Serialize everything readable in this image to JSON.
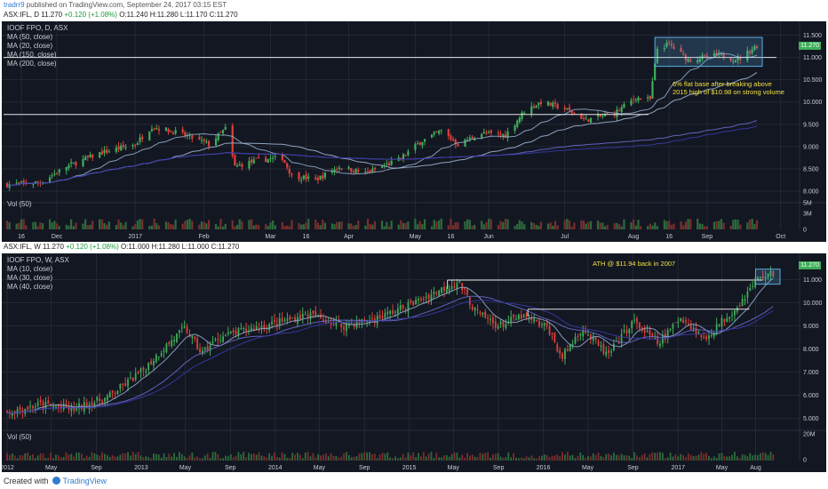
{
  "header": {
    "author": "tradrr9",
    "published": "published on TradingView.com, September 24, 2017 03:15 EST"
  },
  "daily": {
    "infobar": {
      "symbol": "ASX:IFL, D",
      "last": "11.270",
      "change": "+0.120 (+1.08%)",
      "open": "O:11.240",
      "high": "H:11.280",
      "low": "L:11.170",
      "close": "C:11.270"
    },
    "legend": [
      "IOOF FPO, D, ASX",
      "MA (50, close)",
      "MA (20, close)",
      "MA (150, close)",
      "MA (200, close)"
    ],
    "price_tag": "11.270",
    "annotation": [
      "6% flat base after breaking above",
      "2015 high of $10.98 on strong volume"
    ],
    "vol_label": "Vol (50)"
  },
  "weekly": {
    "infobar": {
      "symbol": "ASX:IFL, W",
      "last": "11.270",
      "change": "+0.120 (+1.08%)",
      "open": "O:11.000",
      "high": "H:11.280",
      "low": "L:11.000",
      "close": "C:11.270"
    },
    "legend": [
      "IOOF FPO, W, ASX",
      "MA (10, close)",
      "MA (30, close)",
      "MA (40, close)"
    ],
    "price_tag": "11.270",
    "annotation": "ATH @ $11.94 back in 2007",
    "vol_label": "Vol (50)"
  },
  "footer": {
    "created": "Created with",
    "brand": "TradingView"
  },
  "colors": {
    "background": "#131722",
    "grid": "#242833",
    "up": "#3fae5a",
    "down": "#e0403a",
    "ma_fast": "#8fa8c8",
    "ma_mid": "#6a6ac8",
    "ma_slow": "#3a3aa8",
    "annotation": "#f0e040",
    "box": "#5aaee0"
  },
  "chart_data": [
    {
      "type": "candlestick",
      "title": "IOOF FPO, D, ASX",
      "interval": "daily",
      "x_ticks": [
        "16",
        "Dec",
        "2017",
        "Feb",
        "Mar",
        "16",
        "Apr",
        "May",
        "16",
        "Jun",
        "Jul",
        "Aug",
        "16",
        "Sep",
        "Oct"
      ],
      "y_ticks": [
        "8.000",
        "8.500",
        "9.000",
        "9.500",
        "10.000",
        "10.500",
        "11.000",
        "11.500"
      ],
      "ylim": [
        7.9,
        11.65
      ],
      "volume_ticks": [
        "5M",
        "3M",
        "0"
      ],
      "horizontal_lines": [
        9.72,
        11.0
      ],
      "base_box": {
        "x_start": "2017-08-10",
        "x_end": "2017-09-22",
        "y_low": 10.8,
        "y_high": 11.45
      },
      "close_path": [
        {
          "date": "2016-11-10",
          "close": 8.15
        },
        {
          "date": "2016-11-24",
          "close": 8.2
        },
        {
          "date": "2016-12-05",
          "close": 8.55
        },
        {
          "date": "2016-12-19",
          "close": 8.85
        },
        {
          "date": "2017-01-03",
          "close": 9.05
        },
        {
          "date": "2017-01-10",
          "close": 9.45
        },
        {
          "date": "2017-01-18",
          "close": 9.35
        },
        {
          "date": "2017-01-27",
          "close": 9.2
        },
        {
          "date": "2017-02-03",
          "close": 9.05
        },
        {
          "date": "2017-02-10",
          "close": 9.4
        },
        {
          "date": "2017-02-14",
          "close": 8.55
        },
        {
          "date": "2017-02-24",
          "close": 8.7
        },
        {
          "date": "2017-03-06",
          "close": 8.75
        },
        {
          "date": "2017-03-10",
          "close": 8.35
        },
        {
          "date": "2017-03-20",
          "close": 8.25
        },
        {
          "date": "2017-03-30",
          "close": 8.55
        },
        {
          "date": "2017-04-10",
          "close": 8.4
        },
        {
          "date": "2017-04-24",
          "close": 8.7
        },
        {
          "date": "2017-05-03",
          "close": 9.1
        },
        {
          "date": "2017-05-12",
          "close": 9.35
        },
        {
          "date": "2017-05-19",
          "close": 9.05
        },
        {
          "date": "2017-05-29",
          "close": 9.3
        },
        {
          "date": "2017-06-08",
          "close": 9.25
        },
        {
          "date": "2017-06-16",
          "close": 9.8
        },
        {
          "date": "2017-06-23",
          "close": 10.0
        },
        {
          "date": "2017-07-03",
          "close": 9.85
        },
        {
          "date": "2017-07-12",
          "close": 9.6
        },
        {
          "date": "2017-07-24",
          "close": 9.75
        },
        {
          "date": "2017-08-02",
          "close": 10.1
        },
        {
          "date": "2017-08-08",
          "close": 10.05
        },
        {
          "date": "2017-08-11",
          "close": 11.2
        },
        {
          "date": "2017-08-16",
          "close": 11.3
        },
        {
          "date": "2017-08-24",
          "close": 10.95
        },
        {
          "date": "2017-09-06",
          "close": 11.05
        },
        {
          "date": "2017-09-14",
          "close": 10.95
        },
        {
          "date": "2017-09-22",
          "close": 11.27
        }
      ]
    },
    {
      "type": "candlestick",
      "title": "IOOF FPO, W, ASX",
      "interval": "weekly",
      "x_ticks": [
        "2012",
        "May",
        "Sep",
        "2013",
        "May",
        "Sep",
        "2014",
        "May",
        "Sep",
        "2015",
        "May",
        "Sep",
        "2016",
        "May",
        "Sep",
        "2017",
        "May",
        "Aug"
      ],
      "y_ticks": [
        "5.000",
        "6.000",
        "7.000",
        "8.000",
        "9.000",
        "10.000",
        "11.000"
      ],
      "ylim": [
        4.6,
        11.9
      ],
      "volume_ticks": [
        "20M",
        "0"
      ],
      "horizontal_lines": [
        {
          "y": 10.98,
          "x_start": "2015-04-15",
          "x_end": "2017-08-20"
        },
        {
          "y": 9.72,
          "x_start": "2015-11-20",
          "x_end": "2017-07-15"
        }
      ],
      "base_box": {
        "x_start": "2017-08-01",
        "x_end": "2017-09-22",
        "y_low": 10.8,
        "y_high": 11.45
      },
      "close_path": [
        {
          "date": "2012-01-02",
          "close": 5.25
        },
        {
          "date": "2012-04-01",
          "close": 5.6
        },
        {
          "date": "2012-07-01",
          "close": 5.4
        },
        {
          "date": "2012-10-01",
          "close": 5.9
        },
        {
          "date": "2013-01-01",
          "close": 7.0
        },
        {
          "date": "2013-03-01",
          "close": 8.0
        },
        {
          "date": "2013-05-01",
          "close": 8.9
        },
        {
          "date": "2013-06-15",
          "close": 7.8
        },
        {
          "date": "2013-08-01",
          "close": 8.5
        },
        {
          "date": "2013-11-01",
          "close": 8.9
        },
        {
          "date": "2014-01-01",
          "close": 9.1
        },
        {
          "date": "2014-04-01",
          "close": 9.5
        },
        {
          "date": "2014-07-01",
          "close": 9.0
        },
        {
          "date": "2014-10-01",
          "close": 9.3
        },
        {
          "date": "2015-01-01",
          "close": 9.9
        },
        {
          "date": "2015-04-01",
          "close": 10.6
        },
        {
          "date": "2015-05-15",
          "close": 10.9
        },
        {
          "date": "2015-07-01",
          "close": 9.6
        },
        {
          "date": "2015-09-01",
          "close": 9.0
        },
        {
          "date": "2015-11-01",
          "close": 9.4
        },
        {
          "date": "2016-01-15",
          "close": 8.9
        },
        {
          "date": "2016-02-20",
          "close": 7.6
        },
        {
          "date": "2016-04-15",
          "close": 8.9
        },
        {
          "date": "2016-06-25",
          "close": 7.7
        },
        {
          "date": "2016-09-01",
          "close": 9.2
        },
        {
          "date": "2016-11-10",
          "close": 8.2
        },
        {
          "date": "2017-01-10",
          "close": 9.4
        },
        {
          "date": "2017-03-15",
          "close": 8.4
        },
        {
          "date": "2017-05-01",
          "close": 9.2
        },
        {
          "date": "2017-06-15",
          "close": 9.9
        },
        {
          "date": "2017-08-10",
          "close": 11.1
        },
        {
          "date": "2017-09-22",
          "close": 11.27
        }
      ]
    }
  ]
}
